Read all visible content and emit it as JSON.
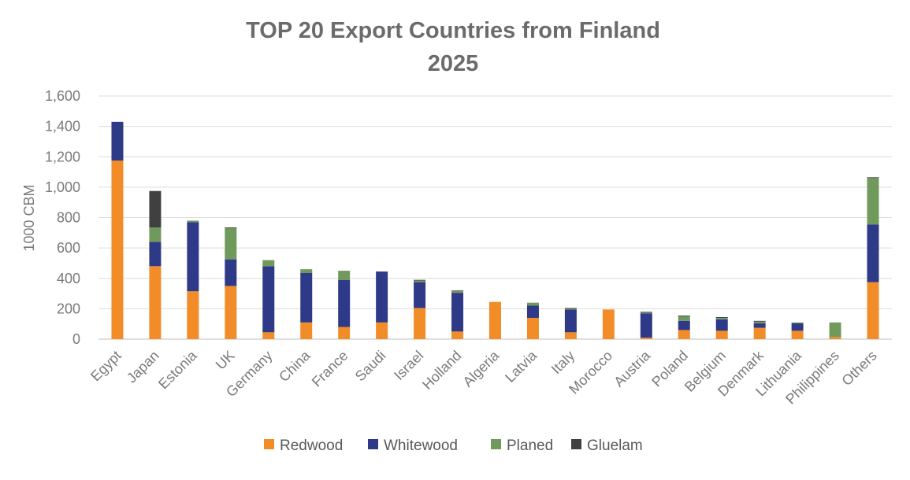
{
  "chart_data": {
    "type": "bar",
    "stacked": true,
    "title_lines": [
      "TOP 20 Export Countries from Finland",
      "2025"
    ],
    "xlabel": "",
    "ylabel": "1000 CBM",
    "ylim": [
      0,
      1600
    ],
    "yticks": [
      0,
      200,
      400,
      600,
      800,
      1000,
      1200,
      1400,
      1600
    ],
    "ytick_labels": [
      "0",
      "200",
      "400",
      "600",
      "800",
      "1,000",
      "1,200",
      "1,400",
      "1,600"
    ],
    "grid": true,
    "legend_position": "bottom",
    "categories": [
      "Egypt",
      "Japan",
      "Estonia",
      "UK",
      "Germany",
      "China",
      "France",
      "Saudi",
      "Israel",
      "Holland",
      "Algeria",
      "Latvia",
      "Italy",
      "Morocco",
      "Austria",
      "Poland",
      "Belgium",
      "Denmark",
      "Lithuania",
      "Philippines",
      "Others"
    ],
    "series": [
      {
        "name": "Redwood",
        "color": "#f28c28",
        "values": [
          1175,
          480,
          315,
          350,
          45,
          110,
          80,
          110,
          205,
          50,
          245,
          140,
          45,
          195,
          10,
          60,
          55,
          75,
          55,
          15,
          375
        ]
      },
      {
        "name": "Whitewood",
        "color": "#2e3a87",
        "values": [
          255,
          160,
          455,
          175,
          435,
          325,
          310,
          335,
          170,
          255,
          0,
          80,
          150,
          0,
          160,
          60,
          75,
          30,
          50,
          0,
          380
        ]
      },
      {
        "name": "Planed",
        "color": "#6f9a5c",
        "values": [
          0,
          95,
          10,
          205,
          40,
          25,
          60,
          0,
          10,
          10,
          0,
          20,
          5,
          0,
          5,
          30,
          10,
          10,
          5,
          95,
          305
        ]
      },
      {
        "name": "Gluelam",
        "color": "#404040",
        "values": [
          0,
          240,
          0,
          5,
          0,
          0,
          0,
          0,
          5,
          5,
          0,
          0,
          5,
          0,
          5,
          5,
          5,
          5,
          0,
          0,
          5
        ]
      }
    ]
  }
}
